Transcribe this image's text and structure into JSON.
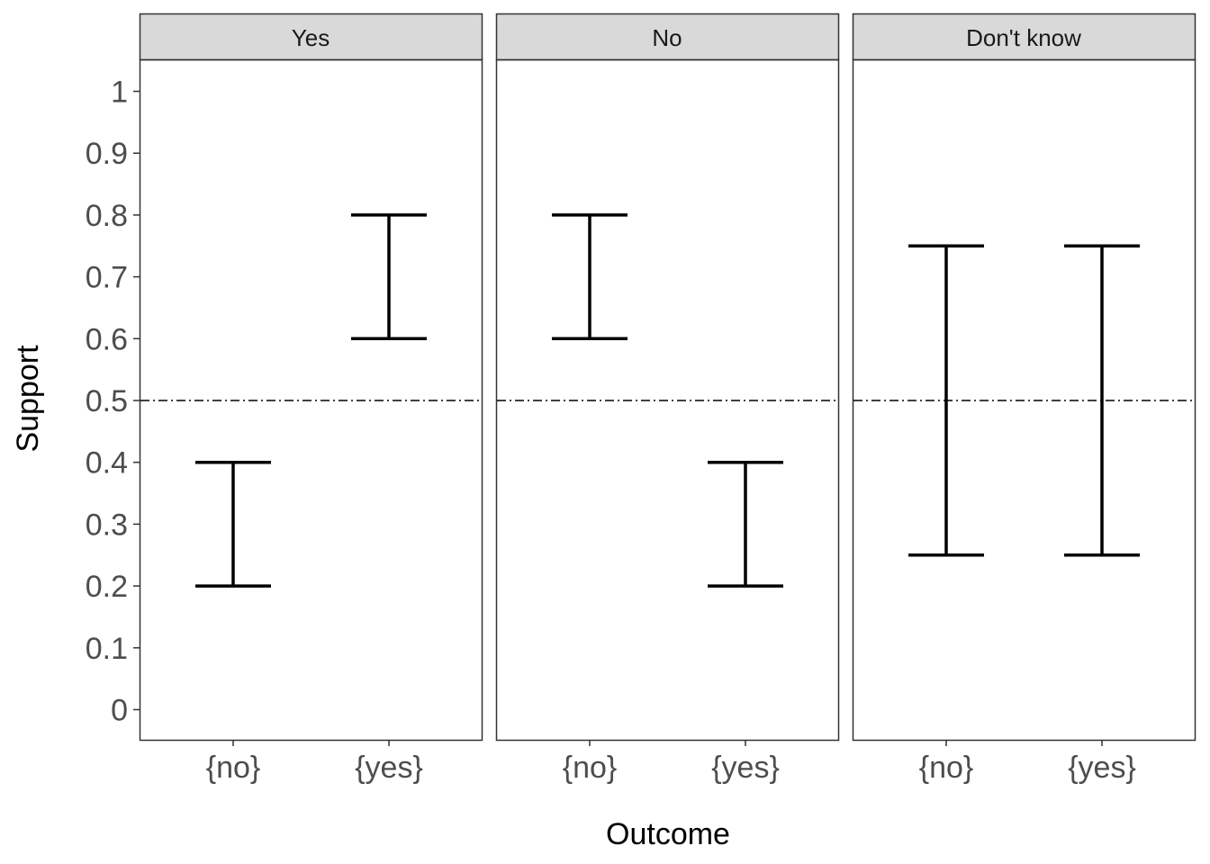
{
  "chart_data": {
    "type": "errorbar",
    "xlabel": "Outcome",
    "ylabel": "Support",
    "ylim": [
      0,
      1
    ],
    "yticks": [
      0,
      0.1,
      0.2,
      0.3,
      0.4,
      0.5,
      0.6,
      0.7,
      0.8,
      0.9,
      1
    ],
    "ytick_labels": [
      "0",
      "0.1",
      "0.2",
      "0.3",
      "0.4",
      "0.5",
      "0.6",
      "0.7",
      "0.8",
      "0.9",
      "1"
    ],
    "categories": [
      "{no}",
      "{yes}"
    ],
    "reference_line": {
      "y": 0.5,
      "style": "dash-dot"
    },
    "grid": false,
    "panels": [
      {
        "title": "Yes",
        "bars": [
          {
            "category": "{no}",
            "lower": 0.2,
            "upper": 0.4
          },
          {
            "category": "{yes}",
            "lower": 0.6,
            "upper": 0.8
          }
        ]
      },
      {
        "title": "No",
        "bars": [
          {
            "category": "{no}",
            "lower": 0.6,
            "upper": 0.8
          },
          {
            "category": "{yes}",
            "lower": 0.2,
            "upper": 0.4
          }
        ]
      },
      {
        "title": "Don't know",
        "bars": [
          {
            "category": "{no}",
            "lower": 0.25,
            "upper": 0.75
          },
          {
            "category": "{yes}",
            "lower": 0.25,
            "upper": 0.75
          }
        ]
      }
    ]
  },
  "colors": {
    "strip_background": "#d9d9d9",
    "panel_border": "#333333",
    "errorbar": "#000000",
    "tick_label": "#4d4d4d"
  }
}
